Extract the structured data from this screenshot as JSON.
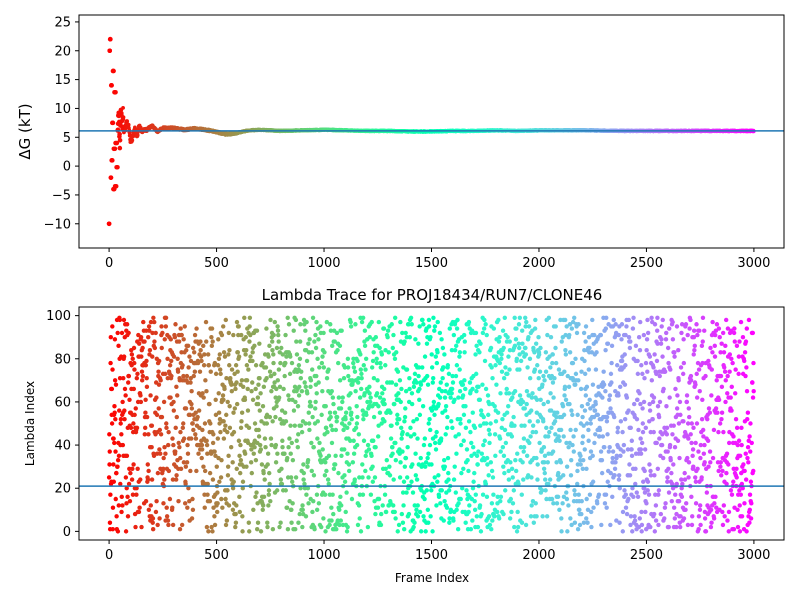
{
  "chart_data": [
    {
      "type": "scatter",
      "title": "",
      "xlabel": "",
      "ylabel": "ΔG (kT)",
      "xlim": [
        -140,
        3140
      ],
      "ylim": [
        -14.2,
        26.2
      ],
      "xticks": [
        "0",
        "500",
        "1000",
        "1500",
        "2000",
        "2500",
        "3000"
      ],
      "yticks": [
        "−10",
        "−5",
        "0",
        "5",
        "10",
        "15",
        "20",
        "25"
      ],
      "colormap": "rainbow",
      "reference_line": {
        "y": 6.1,
        "color": "#1f77b4"
      },
      "series": [
        {
          "x": [
            0,
            3,
            5,
            8,
            10,
            12,
            15,
            18,
            20,
            22,
            25,
            28,
            30,
            35,
            40,
            45,
            50,
            55,
            60,
            65,
            70,
            80,
            90,
            100,
            110,
            120,
            130,
            140,
            150,
            175,
            200,
            225,
            250,
            300,
            350,
            400,
            450,
            500,
            550,
            600,
            650,
            700,
            800,
            900,
            1000,
            1100,
            1200,
            1300,
            1400,
            1500,
            1600,
            1700,
            1800,
            1900,
            2000,
            2200,
            2400,
            2600,
            2800,
            3000
          ],
          "y": [
            -10.0,
            20.0,
            22.0,
            -2.0,
            14.0,
            1.0,
            7.5,
            16.5,
            -4.0,
            3.0,
            12.8,
            -3.5,
            4.0,
            -0.2,
            6.0,
            9.2,
            3.6,
            10.5,
            6.5,
            9.5,
            5.8,
            7.5,
            7.0,
            4.4,
            5.0,
            6.6,
            5.2,
            7.0,
            6.0,
            6.3,
            7.0,
            6.0,
            6.6,
            6.6,
            6.3,
            6.5,
            6.3,
            5.9,
            5.5,
            5.8,
            6.2,
            6.3,
            6.1,
            6.2,
            6.3,
            6.2,
            6.1,
            6.1,
            6.0,
            6.0,
            6.1,
            6.1,
            6.2,
            6.1,
            6.2,
            6.2,
            6.1,
            6.1,
            6.1,
            6.1
          ]
        }
      ]
    },
    {
      "type": "scatter",
      "title": "Lambda Trace for PROJ18434/RUN7/CLONE46",
      "xlabel": "Frame Index",
      "ylabel": "Lambda Index",
      "xlim": [
        -140,
        3140
      ],
      "ylim": [
        -4,
        104
      ],
      "xticks": [
        "0",
        "500",
        "1000",
        "1500",
        "2000",
        "2500",
        "3000"
      ],
      "yticks": [
        "0",
        "20",
        "40",
        "60",
        "80",
        "100"
      ],
      "colormap": "rainbow",
      "reference_line": {
        "y": 21,
        "color": "#1f77b4"
      },
      "n_points": 3000,
      "value_range": [
        0,
        99
      ],
      "distribution": "uniform"
    }
  ]
}
